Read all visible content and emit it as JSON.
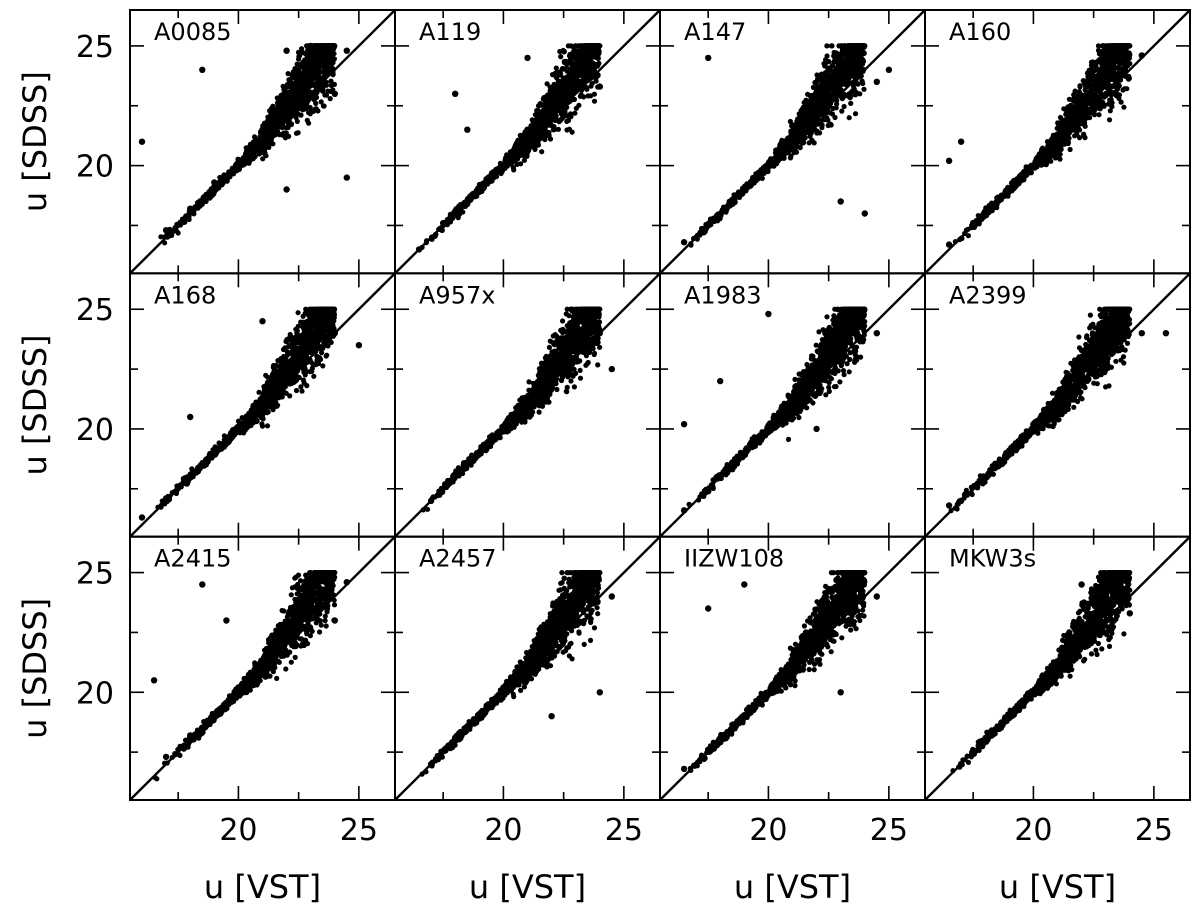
{
  "chart_data": {
    "type": "scatter",
    "layout": "3x4 grid of panels",
    "xlabel": "u  [VST]",
    "ylabel": "u  [SDSS]",
    "xlim": [
      15.5,
      26.5
    ],
    "ylim": [
      15.5,
      26.5
    ],
    "x_ticks": [
      20,
      25
    ],
    "y_ticks": [
      20,
      25
    ],
    "reference_line": "y = x",
    "marker_color": "#000000",
    "panels": [
      {
        "name": "A0085",
        "points": [
          [
            17.0,
            17.3
          ],
          [
            18.0,
            18.2
          ],
          [
            19.0,
            19.3
          ],
          [
            20.0,
            20.1
          ],
          [
            20.5,
            20.8
          ],
          [
            21.0,
            21.5
          ],
          [
            21.5,
            22.2
          ],
          [
            22.0,
            22.8
          ],
          [
            22.5,
            23.5
          ],
          [
            23.0,
            24.0
          ],
          [
            23.5,
            24.5
          ],
          [
            24.0,
            23.0
          ],
          [
            24.5,
            24.8
          ],
          [
            22.0,
            24.8
          ],
          [
            23.0,
            25.0
          ],
          [
            16.0,
            21.0
          ],
          [
            18.5,
            24.0
          ],
          [
            22.0,
            19.0
          ],
          [
            24.5,
            19.5
          ]
        ]
      },
      {
        "name": "A119",
        "points": [
          [
            16.5,
            16.5
          ],
          [
            17.5,
            17.6
          ],
          [
            18.5,
            18.4
          ],
          [
            19.5,
            19.6
          ],
          [
            20.5,
            20.7
          ],
          [
            21.0,
            21.5
          ],
          [
            21.5,
            22.0
          ],
          [
            22.0,
            22.8
          ],
          [
            22.5,
            23.5
          ],
          [
            23.0,
            24.0
          ],
          [
            23.5,
            24.5
          ],
          [
            24.0,
            23.3
          ],
          [
            18.5,
            21.5
          ],
          [
            18.0,
            23.0
          ],
          [
            21.0,
            24.5
          ]
        ]
      },
      {
        "name": "A147",
        "points": [
          [
            16.5,
            16.8
          ],
          [
            17.5,
            17.5
          ],
          [
            18.5,
            18.4
          ],
          [
            19.5,
            19.5
          ],
          [
            20.5,
            20.4
          ],
          [
            21.0,
            21.3
          ],
          [
            21.5,
            22.0
          ],
          [
            22.0,
            22.6
          ],
          [
            22.5,
            23.5
          ],
          [
            23.0,
            24.2
          ],
          [
            23.5,
            24.7
          ],
          [
            24.5,
            23.5
          ],
          [
            25.0,
            24.0
          ],
          [
            23.0,
            18.5
          ],
          [
            24.0,
            18.0
          ],
          [
            17.5,
            24.5
          ]
        ]
      },
      {
        "name": "A160",
        "points": [
          [
            16.5,
            16.7
          ],
          [
            17.5,
            17.6
          ],
          [
            18.5,
            18.5
          ],
          [
            19.5,
            19.4
          ],
          [
            20.5,
            20.6
          ],
          [
            21.0,
            21.3
          ],
          [
            21.5,
            22.0
          ],
          [
            22.0,
            22.6
          ],
          [
            22.5,
            23.3
          ],
          [
            23.0,
            24.0
          ],
          [
            23.5,
            24.5
          ],
          [
            24.5,
            24.6
          ],
          [
            17.0,
            21.0
          ],
          [
            16.5,
            20.2
          ]
        ]
      },
      {
        "name": "A168",
        "points": [
          [
            16.0,
            16.3
          ],
          [
            17.0,
            17.1
          ],
          [
            18.0,
            18.0
          ],
          [
            19.0,
            19.0
          ],
          [
            20.0,
            20.1
          ],
          [
            21.0,
            21.2
          ],
          [
            21.5,
            22.0
          ],
          [
            22.0,
            22.5
          ],
          [
            22.5,
            23.0
          ],
          [
            23.0,
            23.6
          ],
          [
            23.5,
            24.2
          ],
          [
            24.0,
            24.0
          ],
          [
            25.0,
            23.5
          ],
          [
            21.0,
            24.5
          ],
          [
            18.0,
            20.5
          ]
        ]
      },
      {
        "name": "A957x",
        "points": [
          [
            17.0,
            17.0
          ],
          [
            18.0,
            18.1
          ],
          [
            19.0,
            19.0
          ],
          [
            20.0,
            20.1
          ],
          [
            21.0,
            20.9
          ],
          [
            21.5,
            21.5
          ],
          [
            22.0,
            22.0
          ],
          [
            22.5,
            22.3
          ],
          [
            23.0,
            23.0
          ],
          [
            23.5,
            23.5
          ],
          [
            24.0,
            24.0
          ],
          [
            24.5,
            22.5
          ],
          [
            23.0,
            24.5
          ]
        ]
      },
      {
        "name": "A1983",
        "points": [
          [
            16.5,
            16.6
          ],
          [
            17.5,
            17.4
          ],
          [
            18.5,
            18.6
          ],
          [
            19.5,
            19.5
          ],
          [
            20.5,
            20.6
          ],
          [
            21.0,
            21.3
          ],
          [
            21.5,
            21.8
          ],
          [
            22.0,
            22.5
          ],
          [
            22.5,
            23.0
          ],
          [
            23.0,
            23.8
          ],
          [
            23.5,
            24.3
          ],
          [
            24.5,
            24.0
          ],
          [
            18.0,
            22.0
          ],
          [
            16.5,
            20.2
          ],
          [
            20.0,
            24.8
          ],
          [
            22.0,
            20.0
          ]
        ]
      },
      {
        "name": "A2399",
        "points": [
          [
            17.0,
            17.0
          ],
          [
            18.0,
            18.0
          ],
          [
            19.0,
            19.1
          ],
          [
            20.0,
            20.2
          ],
          [
            20.5,
            20.8
          ],
          [
            21.0,
            21.5
          ],
          [
            21.5,
            22.0
          ],
          [
            22.0,
            22.8
          ],
          [
            22.5,
            23.5
          ],
          [
            23.0,
            24.2
          ],
          [
            23.5,
            24.8
          ],
          [
            24.5,
            24.0
          ],
          [
            25.5,
            24.0
          ],
          [
            16.5,
            16.8
          ]
        ]
      },
      {
        "name": "A2415",
        "points": [
          [
            17.0,
            17.3
          ],
          [
            18.0,
            18.2
          ],
          [
            19.0,
            19.0
          ],
          [
            20.0,
            20.2
          ],
          [
            21.0,
            21.3
          ],
          [
            21.5,
            21.8
          ],
          [
            22.0,
            22.3
          ],
          [
            22.5,
            23.0
          ],
          [
            23.0,
            23.5
          ],
          [
            23.5,
            24.0
          ],
          [
            24.0,
            23.0
          ],
          [
            24.5,
            24.6
          ],
          [
            18.5,
            24.5
          ],
          [
            16.5,
            20.5
          ],
          [
            19.5,
            23.0
          ]
        ]
      },
      {
        "name": "A2457",
        "points": [
          [
            17.0,
            17.0
          ],
          [
            18.0,
            18.1
          ],
          [
            19.0,
            19.0
          ],
          [
            20.0,
            20.2
          ],
          [
            20.5,
            20.8
          ],
          [
            21.0,
            21.4
          ],
          [
            21.5,
            22.0
          ],
          [
            22.0,
            22.8
          ],
          [
            22.5,
            23.5
          ],
          [
            23.0,
            24.2
          ],
          [
            23.5,
            24.8
          ],
          [
            24.5,
            24.0
          ],
          [
            22.0,
            19.0
          ],
          [
            24.0,
            20.0
          ]
        ]
      },
      {
        "name": "IIZW108",
        "points": [
          [
            16.5,
            16.8
          ],
          [
            17.5,
            17.6
          ],
          [
            18.5,
            18.5
          ],
          [
            19.5,
            19.6
          ],
          [
            20.5,
            20.6
          ],
          [
            21.0,
            21.3
          ],
          [
            21.5,
            22.0
          ],
          [
            22.0,
            22.6
          ],
          [
            22.5,
            23.3
          ],
          [
            23.0,
            24.0
          ],
          [
            23.5,
            24.5
          ],
          [
            24.5,
            24.0
          ],
          [
            17.5,
            23.5
          ],
          [
            19.0,
            24.5
          ],
          [
            23.0,
            20.0
          ]
        ]
      },
      {
        "name": "MKW3s",
        "points": [
          [
            17.0,
            17.0
          ],
          [
            18.0,
            18.0
          ],
          [
            19.0,
            19.0
          ],
          [
            20.0,
            20.0
          ],
          [
            21.0,
            21.0
          ],
          [
            21.5,
            21.7
          ],
          [
            22.0,
            22.2
          ],
          [
            22.5,
            23.0
          ],
          [
            23.0,
            23.8
          ],
          [
            23.5,
            24.0
          ],
          [
            24.0,
            23.3
          ],
          [
            22.0,
            24.5
          ]
        ]
      }
    ]
  }
}
